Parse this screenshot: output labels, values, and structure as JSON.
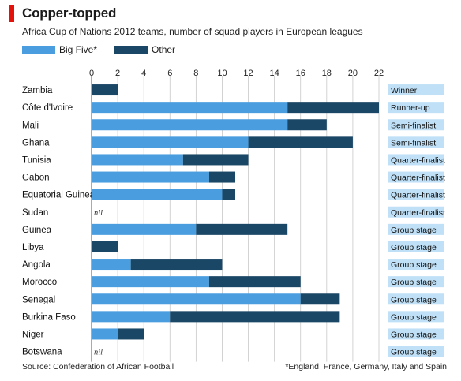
{
  "header": {
    "title": "Copper-topped",
    "subtitle": "Africa Cup of Nations 2012 teams, number of squad players in European leagues"
  },
  "legend": {
    "big_five_label": "Big Five*",
    "other_label": "Other"
  },
  "colors": {
    "big_five": "#4a9ee0",
    "other": "#1b4766",
    "result_box": "#bfe0f7",
    "accent_red": "#e3120b",
    "gridline": "#c8c8c8"
  },
  "footer": {
    "source": "Source: Confederation of African Football",
    "note": "*England, France, Germany, Italy and Spain"
  },
  "chart_data": {
    "type": "bar",
    "orientation": "horizontal",
    "stacked": true,
    "title": "Copper-topped",
    "subtitle": "Africa Cup of Nations 2012 teams, number of squad players in European leagues",
    "xlim": [
      0,
      22
    ],
    "xticks": [
      0,
      2,
      4,
      6,
      8,
      10,
      12,
      14,
      16,
      18,
      20,
      22
    ],
    "grid": true,
    "legend_position": "top-left",
    "categories": [
      "Zambia",
      "Côte d'Ivoire",
      "Mali",
      "Ghana",
      "Tunisia",
      "Gabon",
      "Equatorial Guinea",
      "Sudan",
      "Guinea",
      "Libya",
      "Angola",
      "Morocco",
      "Senegal",
      "Burkina Faso",
      "Niger",
      "Botswana"
    ],
    "series": [
      {
        "name": "Big Five*",
        "values": [
          0,
          15,
          15,
          12,
          7,
          9,
          10,
          0,
          8,
          0,
          3,
          9,
          16,
          6,
          2,
          0
        ]
      },
      {
        "name": "Other",
        "values": [
          2,
          7,
          3,
          8,
          5,
          2,
          1,
          0,
          7,
          2,
          7,
          7,
          3,
          13,
          2,
          0
        ]
      }
    ],
    "nil_label": "nil",
    "nil_categories": [
      "Sudan",
      "Botswana"
    ],
    "results": [
      "Winner",
      "Runner-up",
      "Semi-finalist",
      "Semi-finalist",
      "Quarter-finalist",
      "Quarter-finalist",
      "Quarter-finalist",
      "Quarter-finalist",
      "Group stage",
      "Group stage",
      "Group stage",
      "Group stage",
      "Group stage",
      "Group stage",
      "Group stage",
      "Group stage"
    ]
  }
}
